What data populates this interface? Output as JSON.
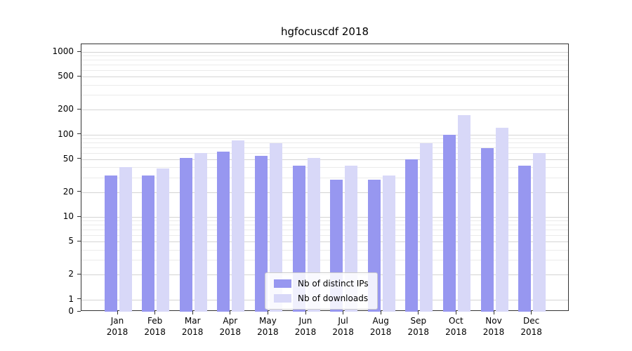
{
  "figure": {
    "title": "hgfocuscdf 2018",
    "background": "#ffffff"
  },
  "chart_data": {
    "type": "bar",
    "title": "hgfocuscdf 2018",
    "categories": [
      "Jan 2018",
      "Feb 2018",
      "Mar 2018",
      "Apr 2018",
      "May 2018",
      "Jun 2018",
      "Jul 2018",
      "Aug 2018",
      "Sep 2018",
      "Oct 2018",
      "Nov 2018",
      "Dec 2018"
    ],
    "series": [
      {
        "name": "Nb of distinct IPs",
        "color": "#9797f0",
        "values": [
          32,
          32,
          52,
          62,
          55,
          42,
          28,
          28,
          50,
          100,
          68,
          42
        ]
      },
      {
        "name": "Nb of downloads",
        "color": "#d8d8f8",
        "values": [
          40,
          39,
          60,
          85,
          78,
          52,
          42,
          32,
          78,
          170,
          120,
          60
        ]
      }
    ],
    "yscale": "symlog",
    "yticks": [
      0,
      1,
      2,
      5,
      10,
      20,
      50,
      100,
      200,
      500,
      1000
    ],
    "ylim": [
      0,
      1250
    ],
    "xlabel": "",
    "ylabel": "",
    "grid": true,
    "legend_position": "lower center"
  }
}
